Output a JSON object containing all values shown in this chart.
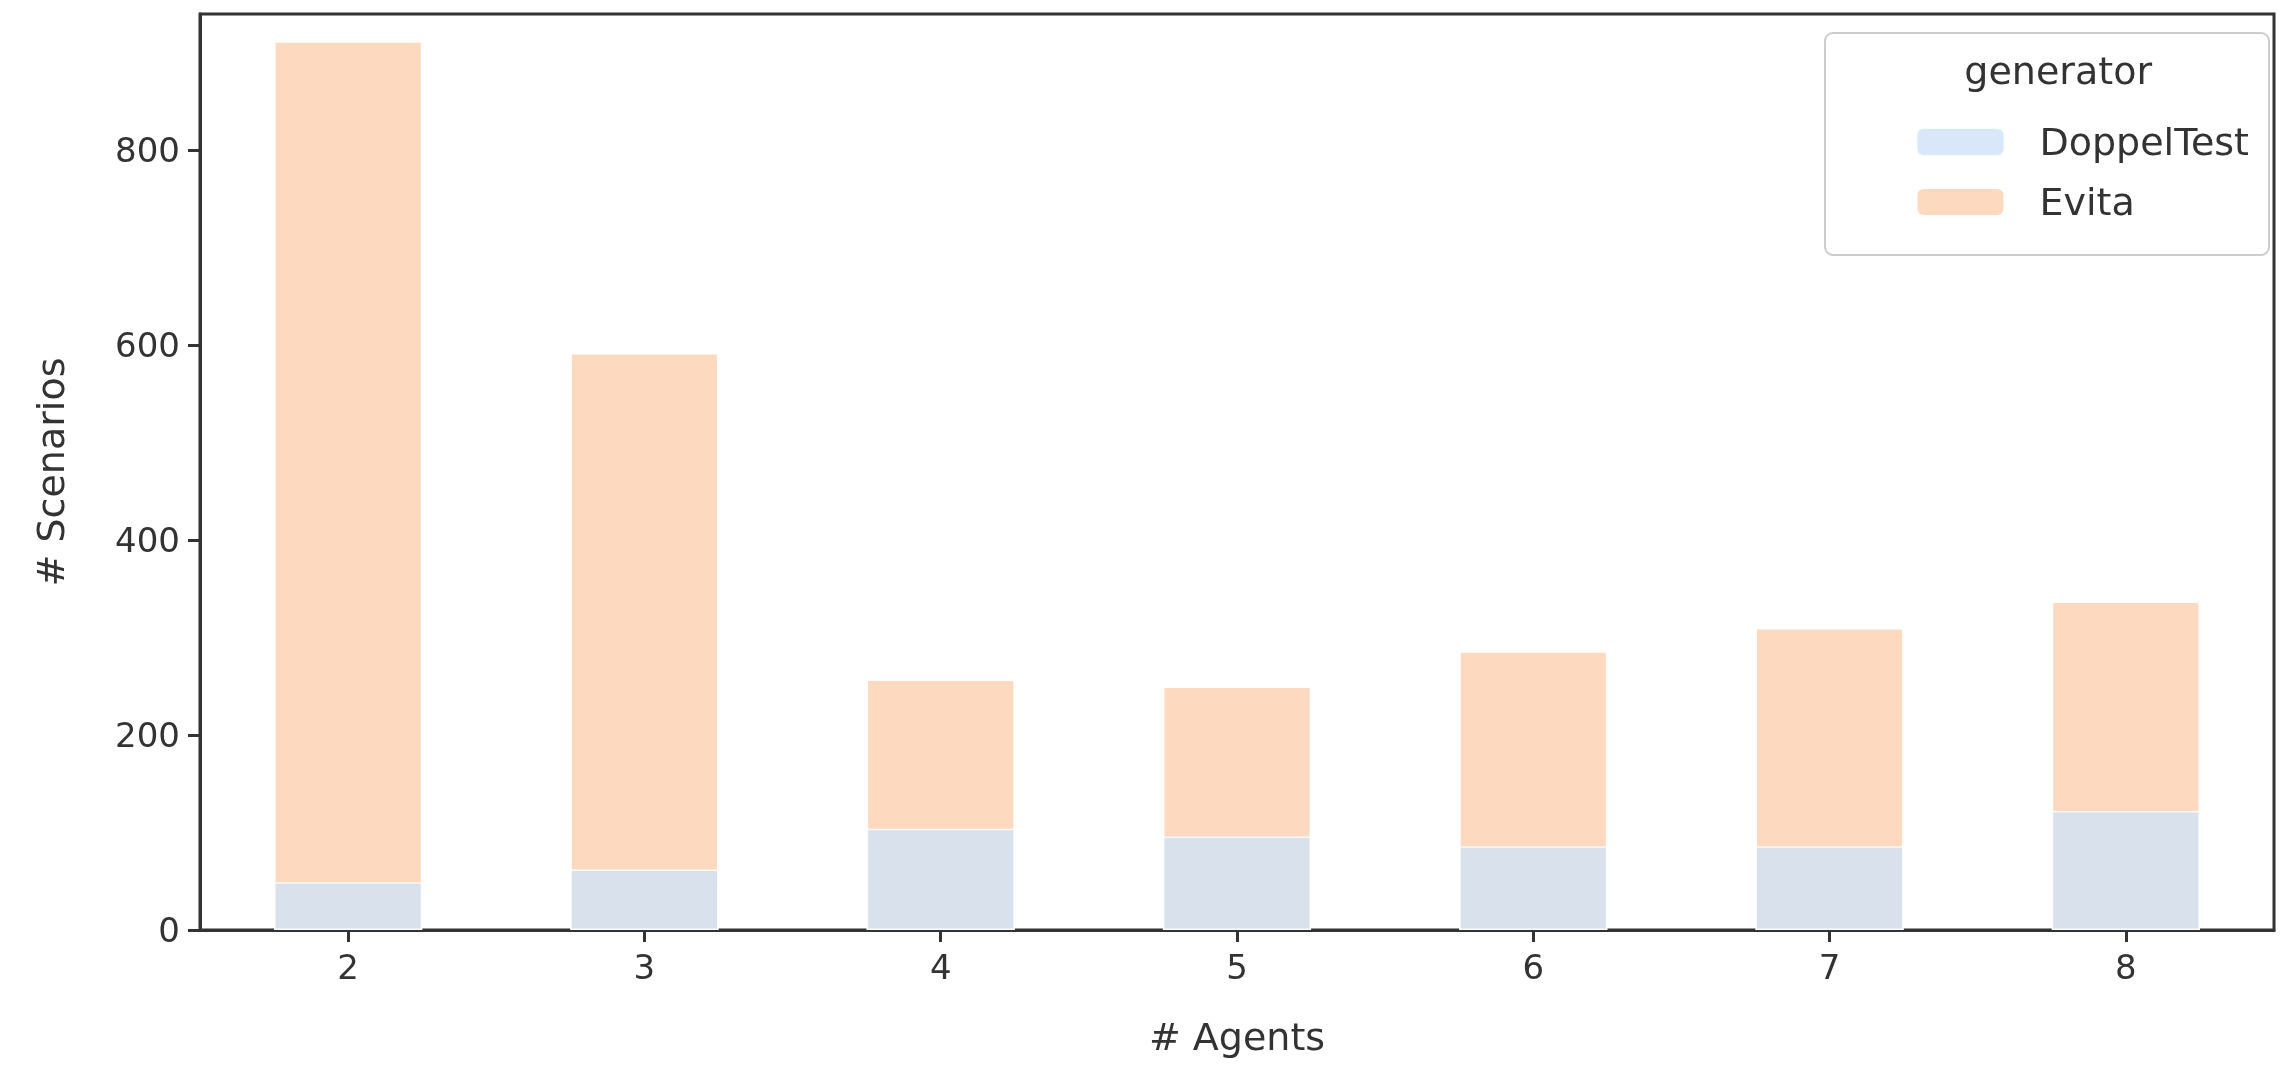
{
  "chart_data": {
    "type": "bar",
    "xlabel": "# Agents",
    "ylabel": "# Scenarios",
    "legend_title": "generator",
    "categories": [
      "2",
      "3",
      "4",
      "5",
      "6",
      "7",
      "8"
    ],
    "series": [
      {
        "name": "Evita",
        "color": "#fdd9bf",
        "values": [
          912,
          592,
          257,
          250,
          286,
          310,
          337
        ]
      },
      {
        "name": "DoppelTest",
        "color": "#cfe2f7",
        "values": [
          49,
          62,
          104,
          96,
          86,
          86,
          122
        ]
      }
    ],
    "ylim": [
      0,
      940
    ],
    "yticks": [
      0,
      200,
      400,
      600,
      800
    ],
    "grid": false,
    "legend": "top right"
  }
}
